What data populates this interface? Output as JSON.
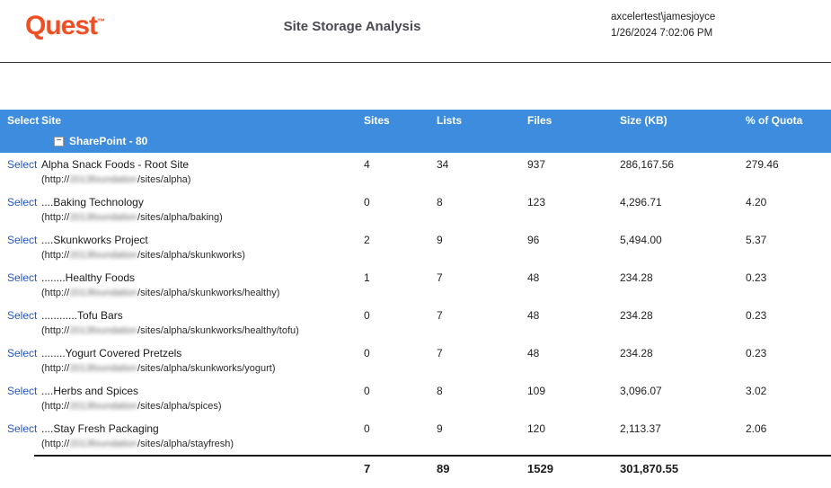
{
  "colors": {
    "header_blue": "#3e8cdd",
    "brand_orange": "#f04e23",
    "link_blue": "#2457c5"
  },
  "header": {
    "logo_text": "Quest",
    "logo_mark": "™",
    "title": "Site Storage Analysis",
    "user": "axcelertest\\jamesjoyce",
    "timestamp": "1/26/2024 7:02:06 PM"
  },
  "table": {
    "select_label": "Select",
    "columns": [
      "Select",
      "Site",
      "Sites",
      "Lists",
      "Files",
      "Size (KB)",
      "% of Quota"
    ],
    "group": {
      "collapse_icon": "−",
      "label": "SharePoint - 80"
    },
    "rows": [
      {
        "site": "Alpha Snack Foods - Root Site",
        "url_pre": "(http://",
        "url_mid": "2013foundation",
        "url_post": "/sites/alpha)",
        "sites": "4",
        "lists": "34",
        "files": "937",
        "size": "286,167.56",
        "quota": "279.46"
      },
      {
        "site": "....Baking Technology",
        "url_pre": "(http://",
        "url_mid": "2013foundation",
        "url_post": "/sites/alpha/baking)",
        "sites": "0",
        "lists": "8",
        "files": "123",
        "size": "4,296.71",
        "quota": "4.20"
      },
      {
        "site": "....Skunkworks Project",
        "url_pre": "(http://",
        "url_mid": "2013foundation",
        "url_post": "/sites/alpha/skunkworks)",
        "sites": "2",
        "lists": "9",
        "files": "96",
        "size": "5,494.00",
        "quota": "5.37"
      },
      {
        "site": "........Healthy Foods",
        "url_pre": "(http://",
        "url_mid": "2013foundation",
        "url_post": "/sites/alpha/skunkworks/healthy)",
        "sites": "1",
        "lists": "7",
        "files": "48",
        "size": "234.28",
        "quota": "0.23"
      },
      {
        "site": "............Tofu Bars",
        "url_pre": "(http://",
        "url_mid": "2013foundation",
        "url_post": "/sites/alpha/skunkworks/healthy/tofu)",
        "sites": "0",
        "lists": "7",
        "files": "48",
        "size": "234.28",
        "quota": "0.23"
      },
      {
        "site": "........Yogurt Covered Pretzels",
        "url_pre": "(http://",
        "url_mid": "2013foundation",
        "url_post": "/sites/alpha/skunkworks/yogurt)",
        "sites": "0",
        "lists": "7",
        "files": "48",
        "size": "234.28",
        "quota": "0.23"
      },
      {
        "site": "....Herbs and Spices",
        "url_pre": "(http://",
        "url_mid": "2013foundation",
        "url_post": "/sites/alpha/spices)",
        "sites": "0",
        "lists": "8",
        "files": "109",
        "size": "3,096.07",
        "quota": "3.02"
      },
      {
        "site": "....Stay Fresh Packaging",
        "url_pre": "(http://",
        "url_mid": "2013foundation",
        "url_post": "/sites/alpha/stayfresh)",
        "sites": "0",
        "lists": "9",
        "files": "120",
        "size": "2,113.37",
        "quota": "2.06"
      }
    ],
    "totals": {
      "sites": "7",
      "lists": "89",
      "files": "1529",
      "size": "301,870.55"
    }
  }
}
